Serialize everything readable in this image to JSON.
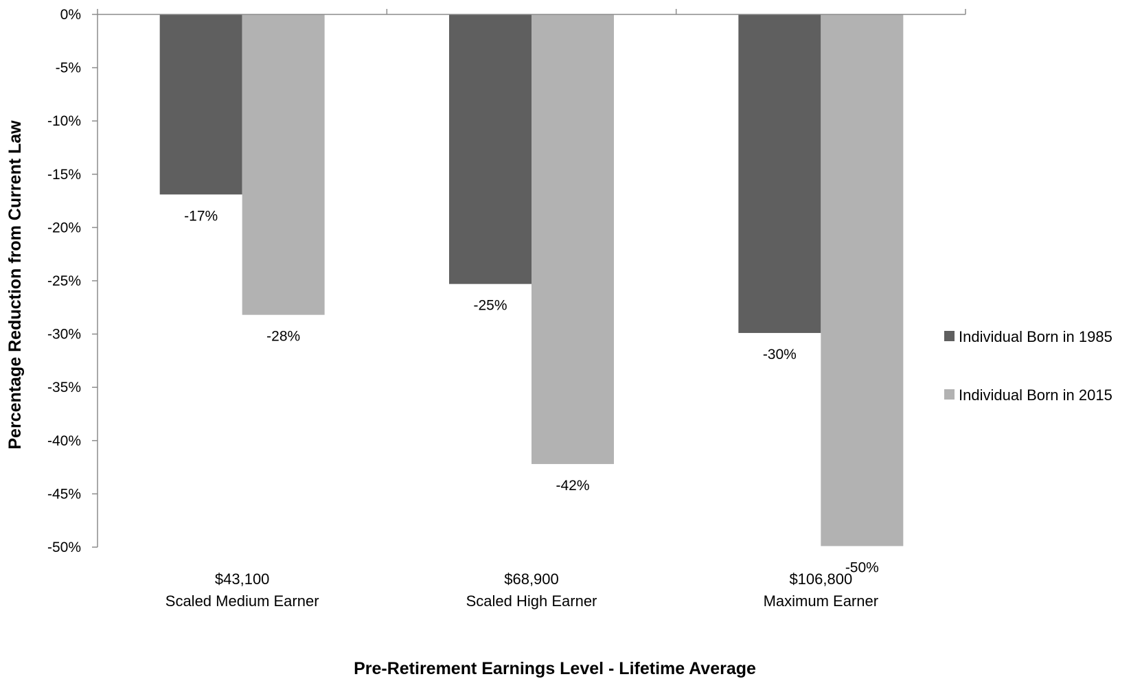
{
  "chart_data": {
    "type": "bar",
    "title": "",
    "xlabel": "Pre-Retirement Earnings Level - Lifetime Average",
    "ylabel": "Percentage Reduction from Current Law",
    "ylim": [
      -50,
      0
    ],
    "yticks": [
      0,
      -5,
      -10,
      -15,
      -20,
      -25,
      -30,
      -35,
      -40,
      -45,
      -50
    ],
    "ytick_labels": [
      "0%",
      "-5%",
      "-10%",
      "-15%",
      "-20%",
      "-25%",
      "-30%",
      "-35%",
      "-40%",
      "-45%",
      "-50%"
    ],
    "grid": false,
    "legend_position": "right",
    "categories": [
      {
        "line1": "$43,100",
        "line2": "Scaled Medium Earner"
      },
      {
        "line1": "$68,900",
        "line2": "Scaled High Earner"
      },
      {
        "line1": "$106,800",
        "line2": "Maximum Earner"
      }
    ],
    "series": [
      {
        "name": "Individual Born in 1985",
        "color": "#5f5f5f",
        "values": [
          -16.9,
          -25.3,
          -29.9
        ],
        "labels": [
          "-17%",
          "-25%",
          "-30%"
        ]
      },
      {
        "name": "Individual Born in 2015",
        "color": "#b2b2b2",
        "values": [
          -28.2,
          -42.2,
          -49.9
        ],
        "labels": [
          "-28%",
          "-42%",
          "-50%"
        ]
      }
    ]
  }
}
